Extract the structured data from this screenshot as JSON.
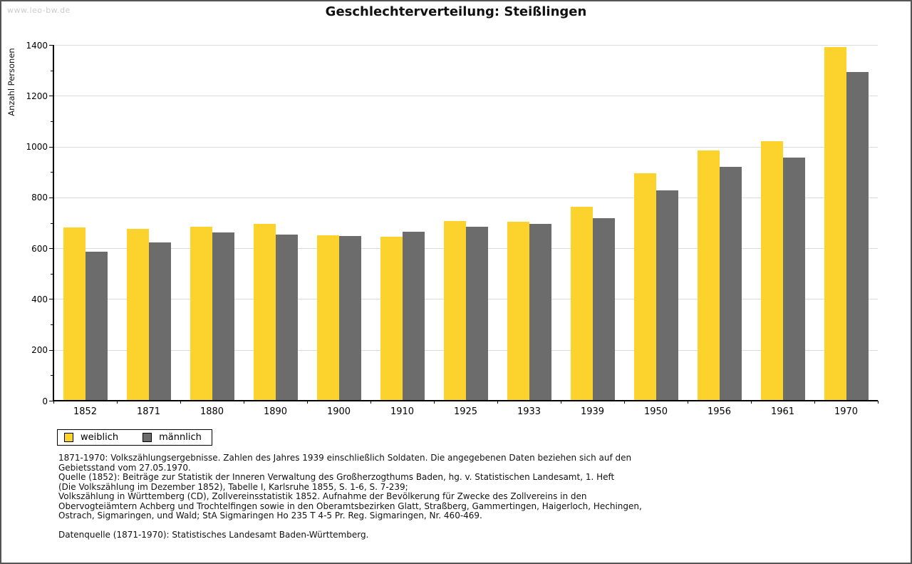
{
  "watermark": "www.leo-bw.de",
  "chart_data": {
    "type": "bar",
    "title": "Geschlechterverteilung: Steißlingen",
    "xlabel": "",
    "ylabel": "Anzahl Personen",
    "ylim": [
      0,
      1400
    ],
    "ytick_step": 200,
    "yminor_step": 100,
    "grid": true,
    "legend_position": "bottom-left",
    "categories": [
      "1852",
      "1871",
      "1880",
      "1890",
      "1900",
      "1910",
      "1925",
      "1933",
      "1939",
      "1950",
      "1956",
      "1961",
      "1970"
    ],
    "series": [
      {
        "name": "weiblich",
        "color": "#FCD22D",
        "values": [
          683,
          675,
          684,
          695,
          652,
          645,
          706,
          703,
          762,
          895,
          985,
          1022,
          1391
        ]
      },
      {
        "name": "männlich",
        "color": "#6C6C6C",
        "values": [
          586,
          624,
          663,
          655,
          649,
          666,
          684,
          695,
          718,
          828,
          919,
          958,
          1294
        ]
      }
    ]
  },
  "colors": {
    "female_bar": "#FCD22D",
    "male_bar": "#6C6C6C",
    "gridline": "#dcdcdc",
    "axis": "#000000",
    "watermark": "#cccccc",
    "page_border": "#555555"
  },
  "footer": {
    "lines": [
      "1871-1970: Volkszählungsergebnisse. Zahlen des Jahres 1939 einschließlich Soldaten. Die angegebenen Daten beziehen sich auf den",
      "Gebietsstand vom 27.05.1970.",
      "Quelle (1852): Beiträge zur Statistik der Inneren Verwaltung des Großherzogthums Baden, hg. v. Statistischen Landesamt, 1. Heft",
      "(Die Volkszählung im Dezember 1852), Tabelle I, Karlsruhe 1855, S. 1-6, S. 7-239;",
      "Volkszählung in Württemberg (CD), Zollvereinsstatistik 1852. Aufnahme der Bevölkerung für Zwecke des Zollvereins in den",
      "Obervogteiämtern Achberg und Trochtelfingen sowie in den Oberamtsbezirken Glatt, Straßberg, Gammertingen, Haigerloch, Hechingen,",
      "Ostrach, Sigmaringen, und Wald; StA Sigmaringen Ho 235 T 4-5 Pr. Reg. Sigmaringen, Nr. 460-469."
    ],
    "datasource": "Datenquelle (1871-1970): Statistisches Landesamt Baden-Württemberg."
  }
}
